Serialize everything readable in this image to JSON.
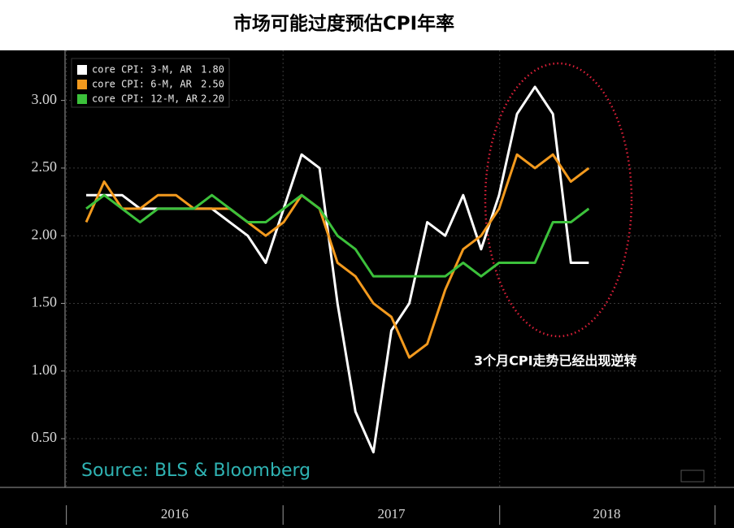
{
  "chart_data": {
    "type": "line",
    "title": "市场可能过度预估CPI年率",
    "annotation": "3个月CPI走势已经出现逆转",
    "source": "Source: BLS & Bloomberg",
    "categories": [
      null,
      null,
      null,
      null,
      null,
      null,
      null,
      null,
      null,
      null,
      null,
      null,
      null,
      null,
      null,
      null,
      null,
      null,
      null,
      null,
      null,
      null,
      null,
      null,
      null,
      null,
      null,
      null,
      null
    ],
    "xlim": [
      -1.18,
      35.5
    ],
    "xticks": [
      {
        "value": 4.93,
        "label": "2016"
      },
      {
        "value": 17.0,
        "label": "2017"
      },
      {
        "value": 29.0,
        "label": "2018"
      }
    ],
    "ylim": [
      0.14,
      3.37
    ],
    "yticks": [
      {
        "value": 0.5,
        "label": "0.50"
      },
      {
        "value": 1,
        "label": "1.00"
      },
      {
        "value": 1.5,
        "label": "1.50"
      },
      {
        "value": 2,
        "label": "2.00"
      },
      {
        "value": 2.5,
        "label": "2.50"
      },
      {
        "value": 3,
        "label": "3.00"
      }
    ],
    "grid": true,
    "legend": "top-left",
    "series": [
      {
        "name": "core CPI: 3-M, AR",
        "legend_value": "1.80",
        "color": "#ffffff",
        "values": [
          2.3,
          2.3,
          2.3,
          2.2,
          2.2,
          2.2,
          2.2,
          2.2,
          2.1,
          2.0,
          1.8,
          2.2,
          2.6,
          2.5,
          1.5,
          0.7,
          0.4,
          1.3,
          1.5,
          2.1,
          2.0,
          2.3,
          1.9,
          2.3,
          2.9,
          3.1,
          2.9,
          1.8,
          1.8
        ]
      },
      {
        "name": "core CPI: 6-M, AR",
        "legend_value": "2.50",
        "color": "#f39a1e",
        "values": [
          2.1,
          2.4,
          2.2,
          2.2,
          2.3,
          2.3,
          2.2,
          2.2,
          2.2,
          2.1,
          2.0,
          2.1,
          2.3,
          2.2,
          1.8,
          1.7,
          1.5,
          1.4,
          1.1,
          1.2,
          1.6,
          1.9,
          2.0,
          2.2,
          2.6,
          2.5,
          2.6,
          2.4,
          2.5
        ]
      },
      {
        "name": "core CPI: 12-M, AR",
        "legend_value": "2.20",
        "color": "#3cc13b",
        "values": [
          2.2,
          2.3,
          2.2,
          2.1,
          2.2,
          2.2,
          2.2,
          2.3,
          2.2,
          2.1,
          2.1,
          2.2,
          2.3,
          2.2,
          2.0,
          1.9,
          1.7,
          1.7,
          1.7,
          1.7,
          1.7,
          1.8,
          1.7,
          1.8,
          1.8,
          1.8,
          2.1,
          2.1,
          2.2
        ]
      }
    ]
  }
}
